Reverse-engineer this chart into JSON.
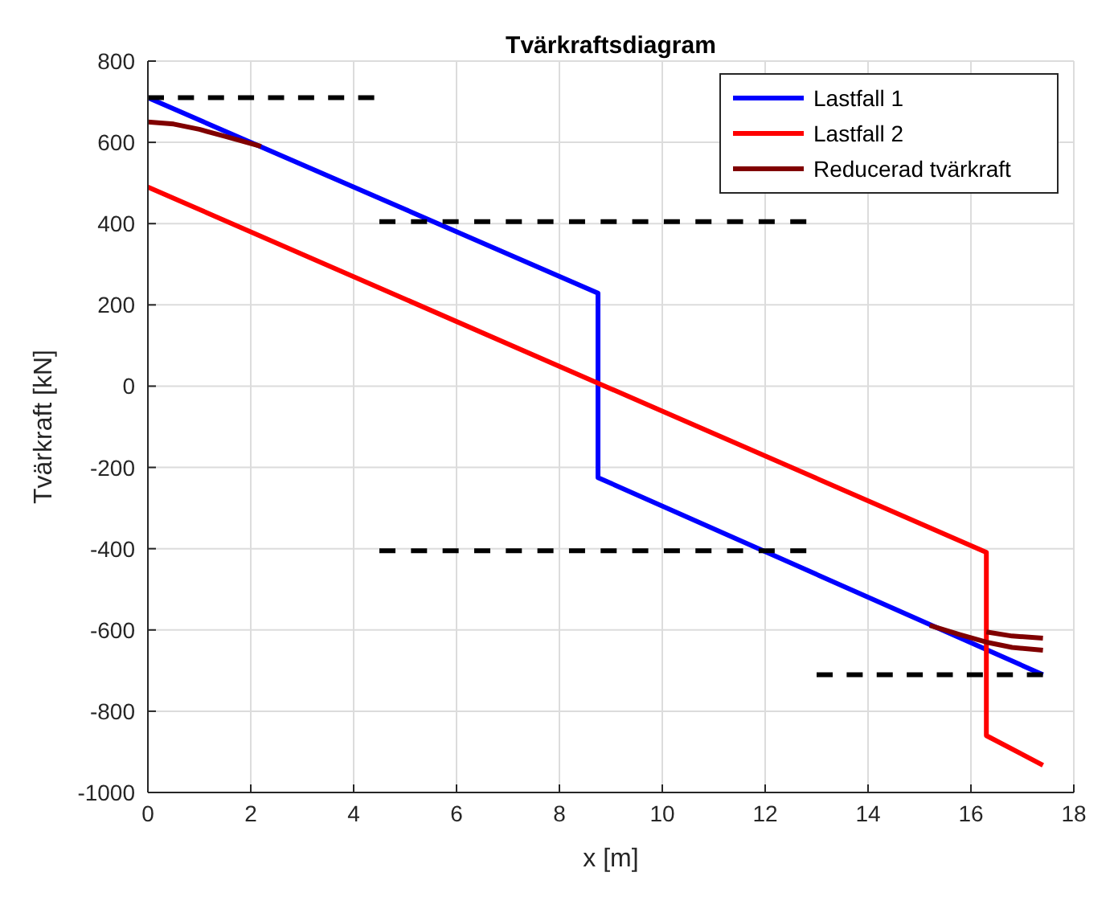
{
  "chart_data": {
    "type": "line",
    "title": "Tvärkraftsdiagram",
    "xlabel": "x [m]",
    "ylabel": "Tvärkraft [kN]",
    "xlim": [
      0,
      18
    ],
    "ylim": [
      -1000,
      800
    ],
    "xticks": [
      0,
      2,
      4,
      6,
      8,
      10,
      12,
      14,
      16,
      18
    ],
    "yticks": [
      -1000,
      -800,
      -600,
      -400,
      -200,
      0,
      200,
      400,
      600,
      800
    ],
    "grid": true,
    "legend": "top right",
    "series": [
      {
        "name": "Lastfall 1",
        "color": "#0000ff",
        "x": [
          0,
          8.75,
          8.75,
          17.4
        ],
        "values": [
          710,
          229,
          -225,
          -710
        ]
      },
      {
        "name": "Lastfall 2",
        "color": "#ff0000",
        "x": [
          0,
          16.3,
          16.3,
          17.4
        ],
        "values": [
          490,
          -409,
          -860,
          -933
        ]
      },
      {
        "name": "Reducerad tvärkraft",
        "color": "#800000",
        "x": [
          0,
          0.5,
          1,
          1.5,
          2.2
        ],
        "values": [
          650,
          645,
          632,
          615,
          590
        ]
      },
      {
        "color": "#800000",
        "x": [
          15.2,
          15.8,
          16.3,
          16.8,
          17.4
        ],
        "values": [
          -589,
          -612,
          -630,
          -643,
          -650
        ]
      },
      {
        "color": "#800000",
        "x": [
          16.3,
          16.8,
          17.4
        ],
        "values": [
          -605,
          -615,
          -620
        ]
      },
      {
        "color": "#000000",
        "line_style": "dashed",
        "x": [
          0,
          4.4
        ],
        "values": [
          710,
          710
        ]
      },
      {
        "color": "#000000",
        "line_style": "dashed",
        "x": [
          4.5,
          12.8
        ],
        "values": [
          405,
          405
        ]
      },
      {
        "color": "#000000",
        "line_style": "dashed",
        "x": [
          4.5,
          12.8
        ],
        "values": [
          -405,
          -405
        ]
      },
      {
        "color": "#000000",
        "line_style": "dashed",
        "x": [
          13,
          17.4
        ],
        "values": [
          -710,
          -710
        ]
      }
    ]
  }
}
